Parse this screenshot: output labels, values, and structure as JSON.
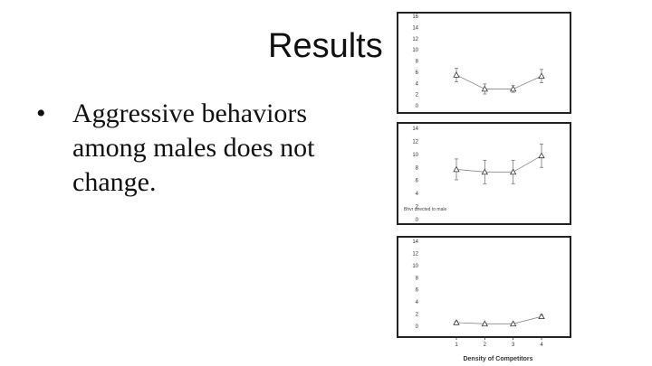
{
  "slide": {
    "title": "Results",
    "bullet_symbol": "•",
    "bullets": [
      "Aggressive behaviors among males does not change."
    ]
  },
  "panels": [
    {
      "side_text": ""
    },
    {
      "side_text": "Bhvr directed to male"
    },
    {
      "side_text": ""
    }
  ],
  "chart_data": [
    {
      "type": "line",
      "x": [
        1,
        2,
        3,
        4
      ],
      "series": [
        {
          "values": [
            5.5,
            3.0,
            3.0,
            5.3
          ],
          "error": [
            1.2,
            0.9,
            0.6,
            1.2
          ]
        }
      ],
      "ylim": [
        0,
        16
      ],
      "yticks": [
        0,
        2,
        4,
        6,
        8,
        10,
        12,
        14,
        16
      ],
      "marker": "triangle",
      "grid": false
    },
    {
      "type": "line",
      "x": [
        1,
        2,
        3,
        4
      ],
      "series": [
        {
          "values": [
            7.7,
            7.3,
            7.3,
            9.8
          ],
          "error": [
            1.6,
            1.8,
            1.8,
            1.8
          ]
        }
      ],
      "ylim": [
        0,
        14
      ],
      "yticks": [
        0,
        2,
        4,
        6,
        8,
        10,
        12,
        14
      ],
      "marker": "triangle",
      "grid": false
    },
    {
      "type": "line",
      "x": [
        1,
        2,
        3,
        4
      ],
      "series": [
        {
          "values": [
            0.6,
            0.4,
            0.4,
            1.6
          ],
          "error": [
            0.2,
            0.1,
            0.1,
            0.3
          ]
        }
      ],
      "ylim": [
        0,
        14
      ],
      "yticks": [
        0,
        2,
        4,
        6,
        8,
        10,
        12,
        14
      ],
      "xticks": [
        "1",
        "2",
        "3",
        "4"
      ],
      "xlabel": "Density of Competitors",
      "marker": "triangle",
      "grid": false
    }
  ]
}
